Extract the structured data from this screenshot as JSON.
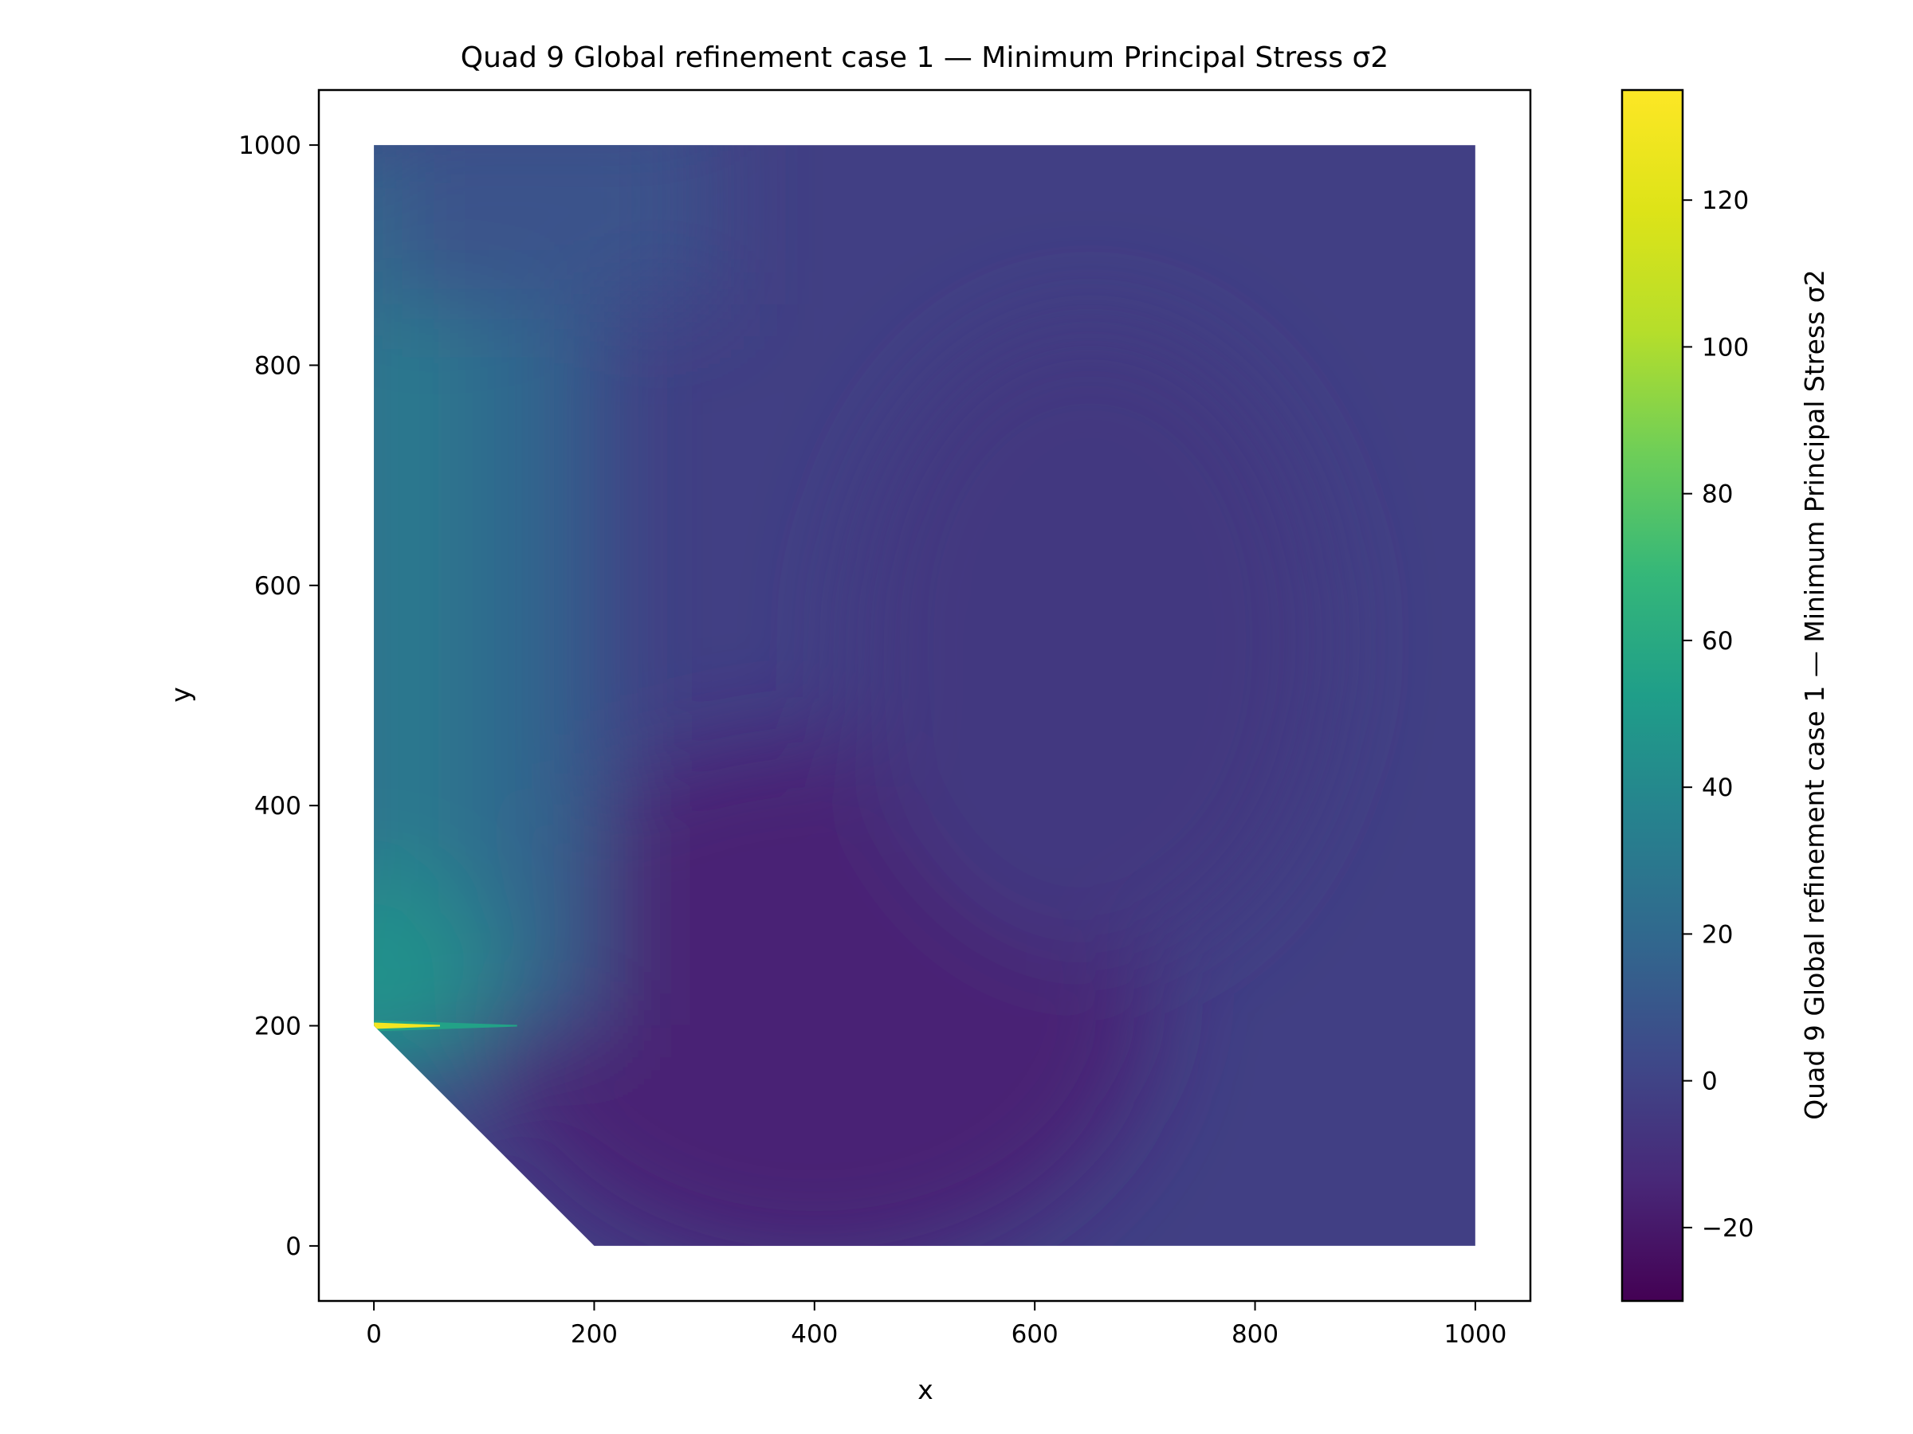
{
  "chart_data": {
    "type": "heatmap",
    "title": "Quad 9 Global refinement case 1 — Minimum Principal Stress σ2",
    "xlabel": "x",
    "ylabel": "y",
    "xlim": [
      -50,
      1050
    ],
    "ylim": [
      -50,
      1050
    ],
    "x_ticks": [
      0,
      200,
      400,
      600,
      800,
      1000
    ],
    "y_ticks": [
      0,
      200,
      400,
      600,
      800,
      1000
    ],
    "x_tick_labels": [
      "0",
      "200",
      "400",
      "600",
      "800",
      "1000"
    ],
    "y_tick_labels": [
      "0",
      "200",
      "400",
      "600",
      "800",
      "1000"
    ],
    "domain_polygon": [
      [
        0,
        200
      ],
      [
        0,
        1000
      ],
      [
        1000,
        1000
      ],
      [
        1000,
        0
      ],
      [
        200,
        0
      ]
    ],
    "colormap": "viridis",
    "colorbar": {
      "label": "Quad 9 Global refinement case 1 — Minimum Principal Stress σ2",
      "range": [
        -30,
        135
      ],
      "ticks": [
        -20,
        0,
        20,
        40,
        60,
        80,
        100,
        120
      ],
      "tick_labels": [
        "−20",
        "0",
        "20",
        "40",
        "60",
        "80",
        "100",
        "120"
      ]
    },
    "field_samples": [
      {
        "x": 0,
        "y": 200,
        "value": 130
      },
      {
        "x": 0,
        "y": 240,
        "value": 45
      },
      {
        "x": 0,
        "y": 400,
        "value": 30
      },
      {
        "x": 0,
        "y": 700,
        "value": 18
      },
      {
        "x": 0,
        "y": 1000,
        "value": 8
      },
      {
        "x": 300,
        "y": 200,
        "value": -15
      },
      {
        "x": 400,
        "y": 300,
        "value": -12
      },
      {
        "x": 700,
        "y": 500,
        "value": -6
      },
      {
        "x": 1000,
        "y": 1000,
        "value": -4
      },
      {
        "x": 1000,
        "y": 0,
        "value": -2
      }
    ],
    "grid": false,
    "legend": "colorbar-right"
  }
}
